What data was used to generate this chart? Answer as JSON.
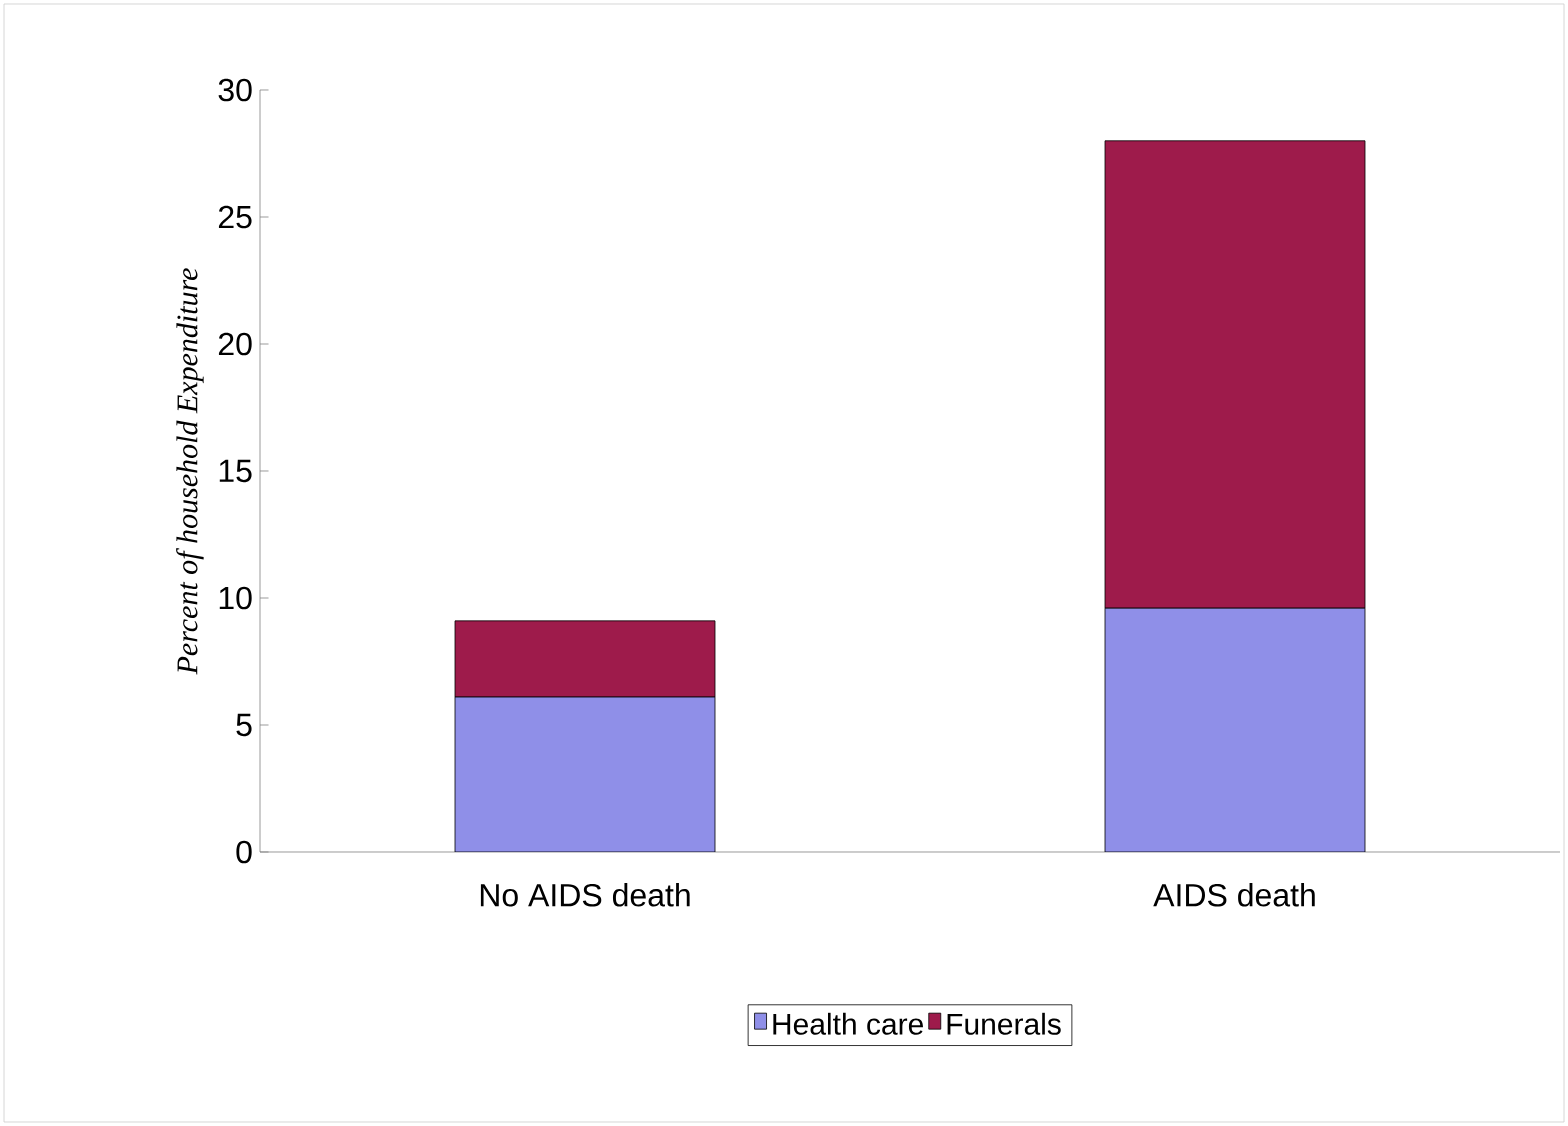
{
  "chart_data": {
    "type": "bar",
    "stacked": true,
    "ylabel": "Percent of household Expenditure",
    "categories": [
      "No AIDS death",
      "AIDS death"
    ],
    "series": [
      {
        "name": "Health care",
        "color": "#8f8fe8",
        "values": [
          6.1,
          9.6
        ]
      },
      {
        "name": "Funerals",
        "color": "#9e1b4b",
        "values": [
          3.0,
          18.4
        ]
      }
    ],
    "ylim": [
      0,
      30
    ],
    "yticks": [
      0,
      5,
      10,
      15,
      20,
      25,
      30
    ],
    "legend": "bottom"
  }
}
